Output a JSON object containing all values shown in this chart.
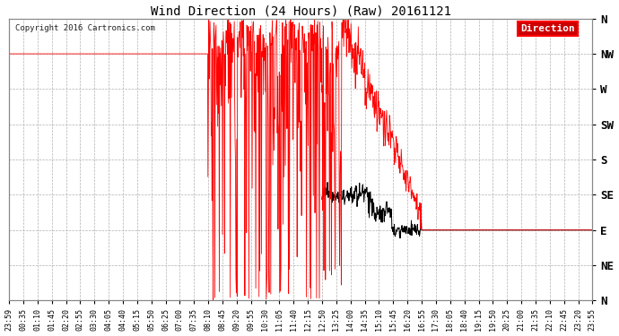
{
  "title": "Wind Direction (24 Hours) (Raw) 20161121",
  "copyright": "Copyright 2016 Cartronics.com",
  "legend_label": "Direction",
  "line_color_red": "#ff0000",
  "line_color_black": "#000000",
  "bg_color": "#ffffff",
  "grid_color": "#b0b0b0",
  "ytick_labels": [
    "N",
    "NW",
    "W",
    "SW",
    "S",
    "SE",
    "E",
    "NE",
    "N"
  ],
  "ytick_values": [
    360,
    315,
    270,
    225,
    180,
    135,
    90,
    45,
    0
  ],
  "xtick_labels": [
    "23:59",
    "00:35",
    "01:10",
    "01:45",
    "02:20",
    "02:55",
    "03:30",
    "04:05",
    "04:40",
    "05:15",
    "05:50",
    "06:25",
    "07:00",
    "07:35",
    "08:10",
    "08:45",
    "09:20",
    "09:55",
    "10:30",
    "11:05",
    "11:40",
    "12:15",
    "12:50",
    "13:25",
    "14:00",
    "14:35",
    "15:10",
    "15:45",
    "16:20",
    "16:55",
    "17:30",
    "18:05",
    "18:40",
    "19:15",
    "19:50",
    "20:25",
    "21:00",
    "21:35",
    "22:10",
    "22:45",
    "23:20",
    "23:55"
  ],
  "ylim": [
    0,
    360
  ],
  "xlim": [
    0,
    1440
  ],
  "figsize": [
    6.9,
    3.75
  ],
  "dpi": 100
}
